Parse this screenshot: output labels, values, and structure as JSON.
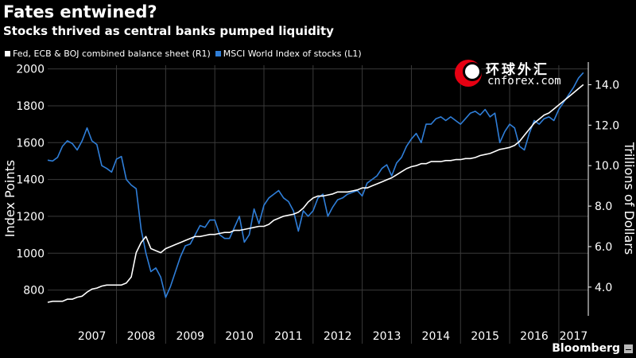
{
  "title": "Fates entwined?",
  "subtitle": "Stocks thrived as central banks pumped liquidity",
  "legend": [
    {
      "label": "Fed, ECB & BOJ combined balance sheet (R1)",
      "color": "#ffffff"
    },
    {
      "label": "MSCI World Index of stocks (L1)",
      "color": "#2f7ed8"
    }
  ],
  "watermark": {
    "chinese": "环球外汇",
    "site": "cnforex.com"
  },
  "source": "Bloomberg",
  "chart_data": {
    "type": "line",
    "x_range": [
      2006.6,
      2017.6
    ],
    "year_labels": [
      "2007",
      "2008",
      "2009",
      "2010",
      "2011",
      "2012",
      "2013",
      "2014",
      "2015",
      "2016",
      "2017"
    ],
    "left_axis": {
      "label": "Index Points",
      "range": [
        660,
        2020
      ],
      "ticks": [
        800,
        1000,
        1200,
        1400,
        1600,
        1800,
        2000
      ]
    },
    "right_axis": {
      "label": "Trillions of Dollars",
      "range": [
        2.58,
        14.96
      ],
      "ticks": [
        "4.0",
        "6.0",
        "8.0",
        "10.0",
        "12.0",
        "14.0"
      ]
    },
    "grid": true,
    "series": [
      {
        "name": "MSCI World Index of stocks (L1)",
        "axis": "left",
        "color": "#2f7ed8",
        "x": [
          2006.6,
          2006.7,
          2006.8,
          2006.9,
          2007.0,
          2007.1,
          2007.2,
          2007.3,
          2007.4,
          2007.5,
          2007.6,
          2007.7,
          2007.8,
          2007.9,
          2008.0,
          2008.1,
          2008.2,
          2008.3,
          2008.4,
          2008.5,
          2008.6,
          2008.7,
          2008.8,
          2008.9,
          2009.0,
          2009.1,
          2009.2,
          2009.3,
          2009.4,
          2009.5,
          2009.6,
          2009.7,
          2009.8,
          2009.9,
          2010.0,
          2010.1,
          2010.2,
          2010.3,
          2010.4,
          2010.5,
          2010.6,
          2010.7,
          2010.8,
          2010.9,
          2011.0,
          2011.1,
          2011.2,
          2011.3,
          2011.4,
          2011.5,
          2011.6,
          2011.7,
          2011.8,
          2011.9,
          2012.0,
          2012.1,
          2012.2,
          2012.3,
          2012.4,
          2012.5,
          2012.6,
          2012.7,
          2012.8,
          2012.9,
          2013.0,
          2013.1,
          2013.2,
          2013.3,
          2013.4,
          2013.5,
          2013.6,
          2013.7,
          2013.8,
          2013.9,
          2014.0,
          2014.1,
          2014.2,
          2014.3,
          2014.4,
          2014.5,
          2014.6,
          2014.7,
          2014.8,
          2014.9,
          2015.0,
          2015.1,
          2015.2,
          2015.3,
          2015.4,
          2015.5,
          2015.6,
          2015.7,
          2015.8,
          2015.9,
          2016.0,
          2016.1,
          2016.2,
          2016.3,
          2016.4,
          2016.5,
          2016.6,
          2016.7,
          2016.8,
          2016.9,
          2017.0,
          2017.1,
          2017.2,
          2017.3,
          2017.4,
          2017.5
        ],
        "values": [
          1505,
          1500,
          1520,
          1580,
          1610,
          1595,
          1560,
          1610,
          1680,
          1610,
          1590,
          1475,
          1460,
          1440,
          1510,
          1525,
          1400,
          1370,
          1350,
          1130,
          1000,
          900,
          920,
          870,
          760,
          820,
          900,
          980,
          1040,
          1050,
          1100,
          1150,
          1140,
          1180,
          1180,
          1100,
          1080,
          1080,
          1140,
          1200,
          1060,
          1100,
          1240,
          1160,
          1260,
          1300,
          1320,
          1340,
          1300,
          1280,
          1230,
          1120,
          1230,
          1200,
          1230,
          1300,
          1320,
          1200,
          1250,
          1290,
          1300,
          1320,
          1330,
          1340,
          1310,
          1380,
          1400,
          1420,
          1460,
          1480,
          1420,
          1490,
          1520,
          1580,
          1620,
          1650,
          1600,
          1700,
          1700,
          1730,
          1740,
          1720,
          1740,
          1720,
          1700,
          1730,
          1760,
          1770,
          1750,
          1780,
          1740,
          1760,
          1600,
          1660,
          1700,
          1680,
          1580,
          1560,
          1650,
          1720,
          1700,
          1730,
          1740,
          1720,
          1780,
          1820,
          1860,
          1900,
          1950,
          1980
        ]
      },
      {
        "name": "Fed, ECB & BOJ combined balance sheet (R1)",
        "axis": "right",
        "color": "#ffffff",
        "x": [
          2006.6,
          2006.7,
          2006.8,
          2006.9,
          2007.0,
          2007.1,
          2007.2,
          2007.3,
          2007.4,
          2007.5,
          2007.6,
          2007.7,
          2007.8,
          2007.9,
          2008.0,
          2008.1,
          2008.2,
          2008.3,
          2008.4,
          2008.5,
          2008.6,
          2008.7,
          2008.8,
          2008.9,
          2009.0,
          2009.1,
          2009.2,
          2009.3,
          2009.4,
          2009.5,
          2009.6,
          2009.7,
          2009.8,
          2009.9,
          2010.0,
          2010.1,
          2010.2,
          2010.3,
          2010.4,
          2010.5,
          2010.6,
          2010.7,
          2010.8,
          2010.9,
          2011.0,
          2011.1,
          2011.2,
          2011.3,
          2011.4,
          2011.5,
          2011.6,
          2011.7,
          2011.8,
          2011.9,
          2012.0,
          2012.1,
          2012.2,
          2012.3,
          2012.4,
          2012.5,
          2012.6,
          2012.7,
          2012.8,
          2012.9,
          2013.0,
          2013.1,
          2013.2,
          2013.3,
          2013.4,
          2013.5,
          2013.6,
          2013.7,
          2013.8,
          2013.9,
          2014.0,
          2014.1,
          2014.2,
          2014.3,
          2014.4,
          2014.5,
          2014.6,
          2014.7,
          2014.8,
          2014.9,
          2015.0,
          2015.1,
          2015.2,
          2015.3,
          2015.4,
          2015.5,
          2015.6,
          2015.7,
          2015.8,
          2015.9,
          2016.0,
          2016.1,
          2016.2,
          2016.3,
          2016.4,
          2016.5,
          2016.6,
          2016.7,
          2016.8,
          2016.9,
          2017.0,
          2017.1,
          2017.2,
          2017.3,
          2017.4,
          2017.5
        ],
        "values": [
          3.25,
          3.3,
          3.3,
          3.3,
          3.4,
          3.4,
          3.5,
          3.55,
          3.75,
          3.9,
          3.95,
          4.05,
          4.1,
          4.1,
          4.1,
          4.1,
          4.2,
          4.5,
          5.7,
          6.2,
          6.5,
          5.9,
          5.8,
          5.7,
          5.9,
          6.0,
          6.1,
          6.2,
          6.3,
          6.4,
          6.5,
          6.5,
          6.55,
          6.6,
          6.6,
          6.65,
          6.7,
          6.7,
          6.8,
          6.8,
          6.85,
          6.9,
          6.95,
          7.0,
          7.0,
          7.1,
          7.3,
          7.4,
          7.5,
          7.55,
          7.6,
          7.7,
          7.9,
          8.2,
          8.4,
          8.5,
          8.5,
          8.55,
          8.6,
          8.7,
          8.7,
          8.7,
          8.75,
          8.8,
          8.9,
          8.9,
          9.0,
          9.1,
          9.2,
          9.3,
          9.4,
          9.55,
          9.7,
          9.85,
          9.95,
          10.0,
          10.1,
          10.1,
          10.2,
          10.2,
          10.2,
          10.25,
          10.25,
          10.3,
          10.3,
          10.35,
          10.35,
          10.4,
          10.5,
          10.55,
          10.6,
          10.7,
          10.8,
          10.85,
          10.9,
          11.0,
          11.2,
          11.5,
          11.8,
          12.1,
          12.3,
          12.5,
          12.6,
          12.8,
          13.0,
          13.2,
          13.4,
          13.6,
          13.8,
          14.0
        ]
      }
    ]
  }
}
